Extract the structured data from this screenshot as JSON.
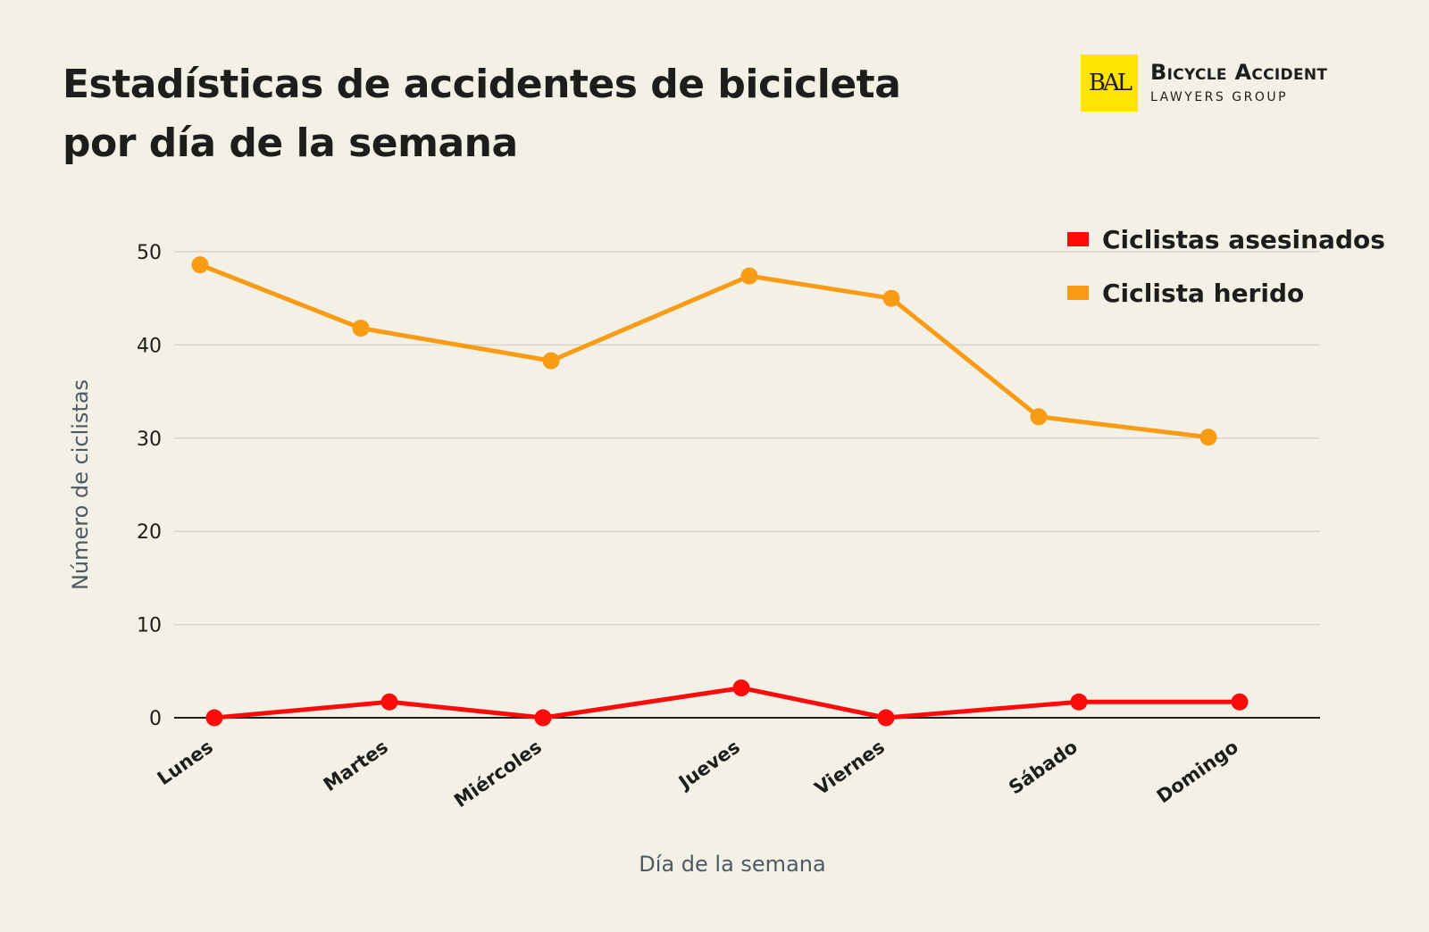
{
  "brand": {
    "logo_mark": "BAL",
    "name": "Bicycle Accident",
    "sub": "LAWYERS GROUP"
  },
  "chart_data": {
    "type": "line",
    "title_line1": "Estadísticas de accidentes de bicicleta",
    "title_line2": "por día de la semana",
    "xlabel": "Día de la semana",
    "ylabel": "Número de ciclistas",
    "ylim": [
      0,
      50
    ],
    "yticks": [
      0,
      10,
      20,
      30,
      40,
      50
    ],
    "grid": true,
    "legend_position": "top-right",
    "categories": [
      "Lunes",
      "Martes",
      "Miércoles",
      "Jueves",
      "Viernes",
      "Sábado",
      "Domingo"
    ],
    "series": [
      {
        "name": "Ciclistas asesinados",
        "color": "#ff0a0a",
        "values": [
          0,
          1.7,
          0,
          3.2,
          0,
          1.7,
          1.7
        ]
      },
      {
        "name": "Ciclista herido",
        "color": "#f99b14",
        "values": [
          48.6,
          41.8,
          38.3,
          47.4,
          45.0,
          32.3,
          30.1
        ]
      }
    ]
  }
}
